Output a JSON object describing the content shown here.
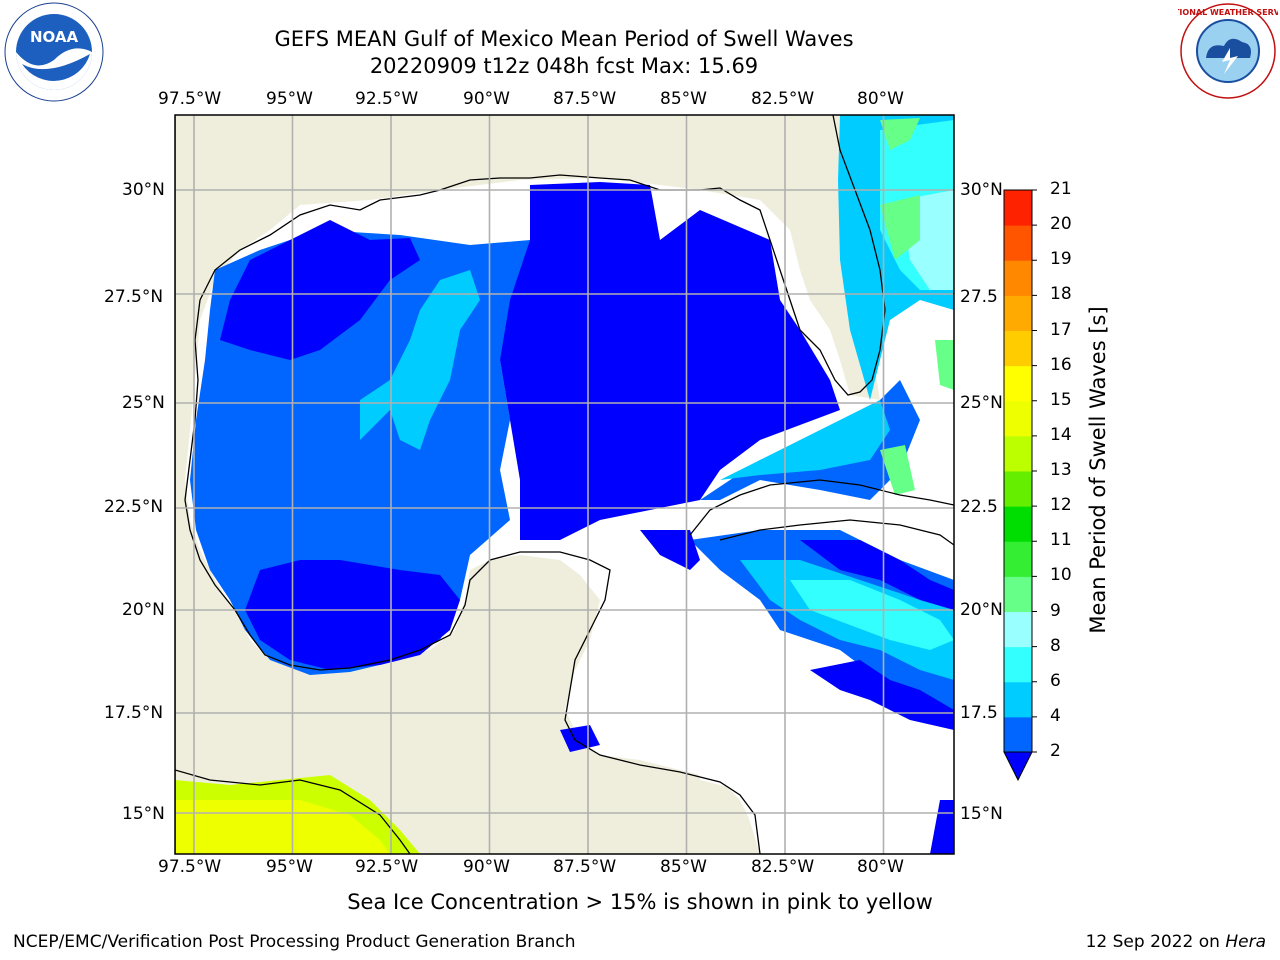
{
  "header": {
    "title_line1": "GEFS MEAN Gulf of Mexico Mean Period of Swell Waves",
    "title_line2": "20220909 t12z 048h fcst   Max: 15.69"
  },
  "map": {
    "lon_labels": [
      "97.5°W",
      "95°W",
      "92.5°W",
      "90°W",
      "87.5°W",
      "85°W",
      "82.5°W",
      "80°W"
    ],
    "lat_labels_left": [
      "30°N",
      "27.5°N",
      "25°N",
      "22.5°N",
      "20°N",
      "17.5°N",
      "15°N"
    ],
    "lat_labels_right": [
      "30°N",
      "27.5",
      "25°N",
      "22.5",
      "20°N",
      "17.5",
      "15°N"
    ],
    "lon_range": [
      -98,
      -78.3
    ],
    "lat_range": [
      14,
      31.8
    ],
    "land_color": "#efeedd",
    "grid_color": "#b0b0b0"
  },
  "colorbar": {
    "title": "Mean Period of Swell Waves [s]",
    "levels": [
      2,
      4,
      6,
      8,
      9,
      10,
      11,
      12,
      13,
      14,
      15,
      16,
      17,
      18,
      19,
      20,
      21
    ],
    "level_labels": [
      "2",
      "4",
      "6",
      "8",
      "9",
      "10",
      "11",
      "12",
      "13",
      "14",
      "15",
      "16",
      "17",
      "18",
      "19",
      "20",
      "21"
    ],
    "colors": [
      "#0066ff",
      "#00ccff",
      "#33ffff",
      "#99ffff",
      "#66ff88",
      "#33ee33",
      "#00dd00",
      "#66ee00",
      "#bbff00",
      "#eeff00",
      "#ffff00",
      "#ffcc00",
      "#ffaa00",
      "#ff8800",
      "#ff5500",
      "#ff2200"
    ],
    "extend_color": "#0000ff"
  },
  "caption": "Sea Ice Concentration > 15% is shown in pink to yellow",
  "footer": {
    "left": "NCEP/EMC/Verification Post Processing Product Generation Branch",
    "right_prefix": "12 Sep 2022 on ",
    "right_host": "Hera"
  },
  "logos": {
    "noaa_text": "NOAA",
    "nws_text": "NATIONAL WEATHER SERVICE"
  }
}
